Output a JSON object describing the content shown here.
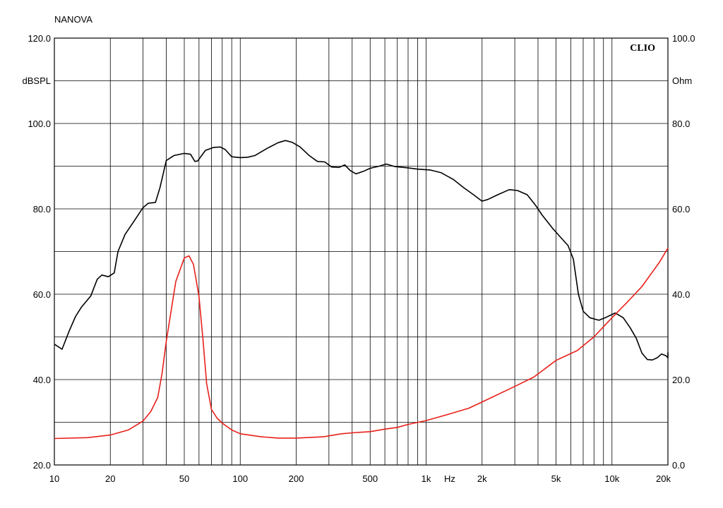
{
  "header": {
    "title": "NANOVA",
    "badge": "CLIO"
  },
  "chart_data": {
    "type": "line",
    "xscale": "log",
    "xlim": [
      10,
      20000
    ],
    "xlabel": "Hz",
    "x_ticks": [
      {
        "value": 10,
        "label": "10"
      },
      {
        "value": 20,
        "label": "20"
      },
      {
        "value": 50,
        "label": "50"
      },
      {
        "value": 100,
        "label": "100"
      },
      {
        "value": 200,
        "label": "200"
      },
      {
        "value": 500,
        "label": "500"
      },
      {
        "value": 1000,
        "label": "1k"
      },
      {
        "value": 2000,
        "label": "2k"
      },
      {
        "value": 5000,
        "label": "5k"
      },
      {
        "value": 10000,
        "label": "10k"
      },
      {
        "value": 20000,
        "label": "20k"
      }
    ],
    "y_left": {
      "label": "dBSPL",
      "lim": [
        20,
        120
      ],
      "tick_labels": [
        "20.0",
        "40.0",
        "60.0",
        "80.0",
        "100.0",
        "120.0"
      ]
    },
    "y_right": {
      "label": "Ohm",
      "lim": [
        0,
        100
      ],
      "tick_labels": [
        "0.0",
        "20.0",
        "40.0",
        "60.0",
        "80.0",
        "100.0"
      ]
    },
    "grid": true,
    "series": [
      {
        "color": "#000000",
        "axis": "left",
        "points": [
          [
            10,
            48.3
          ],
          [
            11,
            47.1
          ],
          [
            12,
            51.3
          ],
          [
            13,
            54.8
          ],
          [
            14,
            57.0
          ],
          [
            15.7,
            59.6
          ],
          [
            17,
            63.5
          ],
          [
            18,
            64.5
          ],
          [
            19.5,
            64.1
          ],
          [
            21,
            65.0
          ],
          [
            22,
            70.0
          ],
          [
            24,
            74.0
          ],
          [
            27,
            77.3
          ],
          [
            30,
            80.3
          ],
          [
            32,
            81.3
          ],
          [
            35,
            81.5
          ],
          [
            37,
            85.0
          ],
          [
            40,
            91.3
          ],
          [
            44,
            92.5
          ],
          [
            50,
            93.0
          ],
          [
            54,
            92.8
          ],
          [
            57,
            91.1
          ],
          [
            59,
            91.2
          ],
          [
            65,
            93.7
          ],
          [
            72,
            94.4
          ],
          [
            78,
            94.5
          ],
          [
            83,
            93.9
          ],
          [
            90,
            92.2
          ],
          [
            100,
            92.0
          ],
          [
            110,
            92.1
          ],
          [
            120,
            92.5
          ],
          [
            140,
            94.2
          ],
          [
            160,
            95.5
          ],
          [
            175,
            96.0
          ],
          [
            190,
            95.6
          ],
          [
            210,
            94.5
          ],
          [
            235,
            92.5
          ],
          [
            260,
            91.1
          ],
          [
            285,
            91.0
          ],
          [
            310,
            89.8
          ],
          [
            340,
            89.7
          ],
          [
            365,
            90.3
          ],
          [
            390,
            89.0
          ],
          [
            420,
            88.2
          ],
          [
            460,
            88.8
          ],
          [
            500,
            89.5
          ],
          [
            560,
            90.0
          ],
          [
            610,
            90.5
          ],
          [
            680,
            89.9
          ],
          [
            800,
            89.6
          ],
          [
            900,
            89.3
          ],
          [
            1050,
            89.1
          ],
          [
            1200,
            88.5
          ],
          [
            1400,
            86.9
          ],
          [
            1600,
            84.9
          ],
          [
            1800,
            83.3
          ],
          [
            2000,
            81.8
          ],
          [
            2150,
            82.2
          ],
          [
            2400,
            83.2
          ],
          [
            2800,
            84.5
          ],
          [
            3100,
            84.3
          ],
          [
            3500,
            83.3
          ],
          [
            3900,
            80.7
          ],
          [
            4200,
            78.6
          ],
          [
            4800,
            75.4
          ],
          [
            5200,
            73.7
          ],
          [
            5800,
            71.4
          ],
          [
            6200,
            68.2
          ],
          [
            6600,
            60.0
          ],
          [
            7000,
            56.0
          ],
          [
            7600,
            54.5
          ],
          [
            8500,
            53.9
          ],
          [
            9300,
            54.6
          ],
          [
            10400,
            55.6
          ],
          [
            11500,
            54.5
          ],
          [
            12500,
            52.2
          ],
          [
            13500,
            49.7
          ],
          [
            14500,
            46.2
          ],
          [
            15500,
            44.7
          ],
          [
            16500,
            44.6
          ],
          [
            17500,
            45.1
          ],
          [
            18500,
            46.0
          ],
          [
            19500,
            45.6
          ],
          [
            20500,
            45.1
          ],
          [
            21500,
            45.7
          ],
          [
            22000,
            46.4
          ]
        ]
      },
      {
        "color": "#e8201a",
        "axis": "right",
        "points": [
          [
            10,
            6.2
          ],
          [
            15,
            6.4
          ],
          [
            20,
            7.0
          ],
          [
            25,
            8.2
          ],
          [
            30,
            10.3
          ],
          [
            33,
            12.5
          ],
          [
            36,
            15.8
          ],
          [
            38,
            21.5
          ],
          [
            40,
            29.0
          ],
          [
            45,
            43.0
          ],
          [
            50,
            48.5
          ],
          [
            53,
            49.0
          ],
          [
            56,
            47.0
          ],
          [
            60,
            39.5
          ],
          [
            63,
            29.5
          ],
          [
            66,
            19.0
          ],
          [
            70,
            13.0
          ],
          [
            75,
            11.0
          ],
          [
            80,
            9.8
          ],
          [
            90,
            8.2
          ],
          [
            100,
            7.3
          ],
          [
            130,
            6.6
          ],
          [
            160,
            6.3
          ],
          [
            200,
            6.3
          ],
          [
            280,
            6.6
          ],
          [
            350,
            7.3
          ],
          [
            420,
            7.6
          ],
          [
            500,
            7.8
          ],
          [
            600,
            8.4
          ],
          [
            700,
            8.8
          ],
          [
            800,
            9.5
          ],
          [
            1000,
            10.4
          ],
          [
            1300,
            11.8
          ],
          [
            1700,
            13.3
          ],
          [
            2200,
            15.6
          ],
          [
            3000,
            18.4
          ],
          [
            3800,
            20.6
          ],
          [
            5000,
            24.5
          ],
          [
            6500,
            26.8
          ],
          [
            8000,
            30.0
          ],
          [
            10000,
            34.5
          ],
          [
            12000,
            38.0
          ],
          [
            14500,
            41.8
          ],
          [
            18000,
            47.5
          ],
          [
            22000,
            50.8
          ]
        ]
      }
    ]
  }
}
